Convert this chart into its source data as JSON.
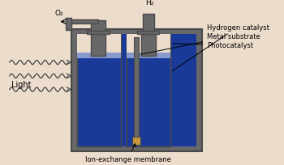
{
  "bg_color": "#ecdccc",
  "dark_gray": "#4a4a4a",
  "mid_gray": "#686868",
  "blue_fill": "#1a3a9a",
  "blue_light": "#8899cc",
  "tan_fill": "#c8963c",
  "wave_color": "#444444",
  "labels": {
    "O2": "O₂",
    "H2": "H₂",
    "Light": "Light",
    "Photocatalyst": "Photocatalyst",
    "Metal substrate": "Metal substrate",
    "Hydrogen catalyst": "Hydrogen catalyst",
    "Ion-exchange membrane": "Ion-exchange membrane"
  },
  "figsize": [
    3.5,
    2.05
  ],
  "dpi": 100
}
